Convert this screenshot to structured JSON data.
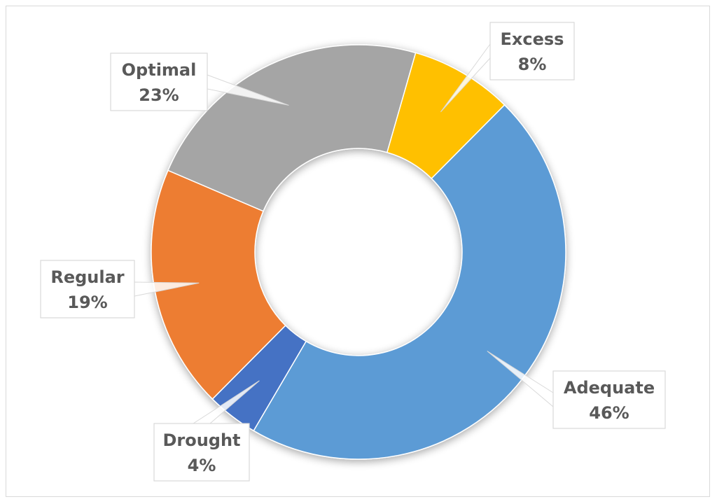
{
  "chart_data": {
    "type": "pie",
    "subtype": "doughnut",
    "title": "",
    "slices": [
      {
        "label": "Excess",
        "value": 8,
        "pct_text": "8%",
        "color": "#FFC000"
      },
      {
        "label": "Adequate",
        "value": 46,
        "pct_text": "46%",
        "color": "#5B9BD5"
      },
      {
        "label": "Drought",
        "value": 4,
        "pct_text": "4%",
        "color": "#4472C4"
      },
      {
        "label": "Regular",
        "value": 19,
        "pct_text": "19%",
        "color": "#ED7D31"
      },
      {
        "label": "Optimal",
        "value": 23,
        "pct_text": "23%",
        "color": "#A5A5A5"
      }
    ],
    "legend": "none",
    "data_labels": "callouts"
  }
}
